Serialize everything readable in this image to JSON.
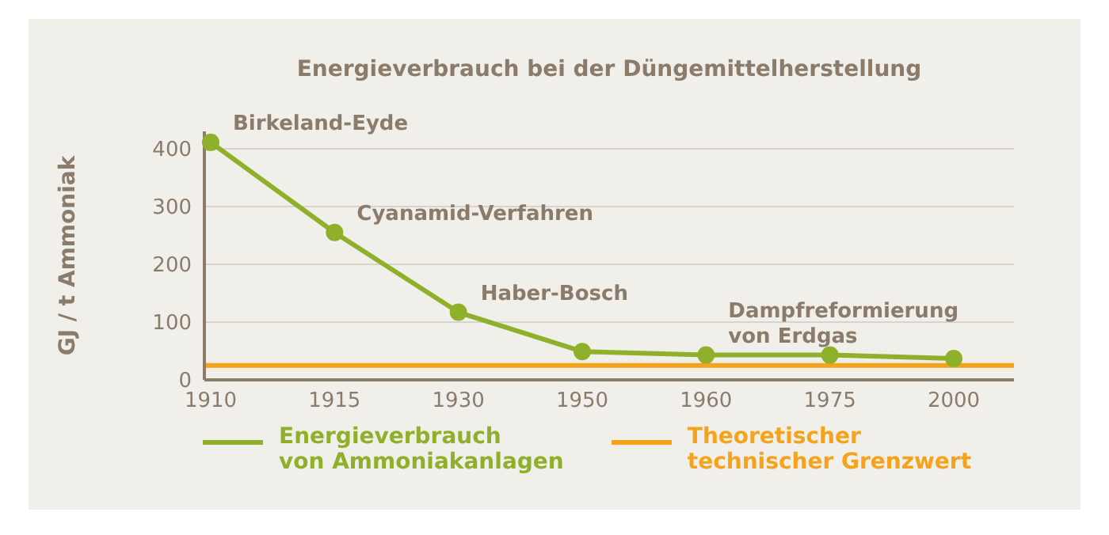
{
  "chart_data": {
    "type": "line",
    "title": "Energieverbrauch bei der Düngemittelherstellung",
    "ylabel": "GJ / t Ammoniak",
    "categories": [
      "1910",
      "1915",
      "1930",
      "1950",
      "1960",
      "1975",
      "2000"
    ],
    "series": [
      {
        "name": "Energieverbrauch\nvon Ammoniakanlagen",
        "color": "#8fb02a",
        "values": [
          411,
          255,
          117,
          49,
          43,
          43,
          37
        ]
      }
    ],
    "ref_lines": [
      {
        "axis": "y",
        "value": 25,
        "label": "Theoretischer\ntechnischer Grenzwert",
        "color": "#f5a21c"
      }
    ],
    "annotations": [
      {
        "text": "Birkeland-Eyde",
        "x": "1910",
        "y": 411
      },
      {
        "text": "Cyanamid-Verfahren",
        "x": "1915",
        "y": 255
      },
      {
        "text": "Haber-Bosch",
        "x": "1930",
        "y": 117
      },
      {
        "text": "Dampfreformierung\nvon Erdgas",
        "x": "1960",
        "y": 43
      }
    ],
    "ylim": [
      0,
      430
    ],
    "yticks": [
      0,
      100,
      200,
      300,
      400
    ],
    "grid": "y",
    "marker": "circle",
    "line_style": "solid",
    "legend": "bottom"
  }
}
